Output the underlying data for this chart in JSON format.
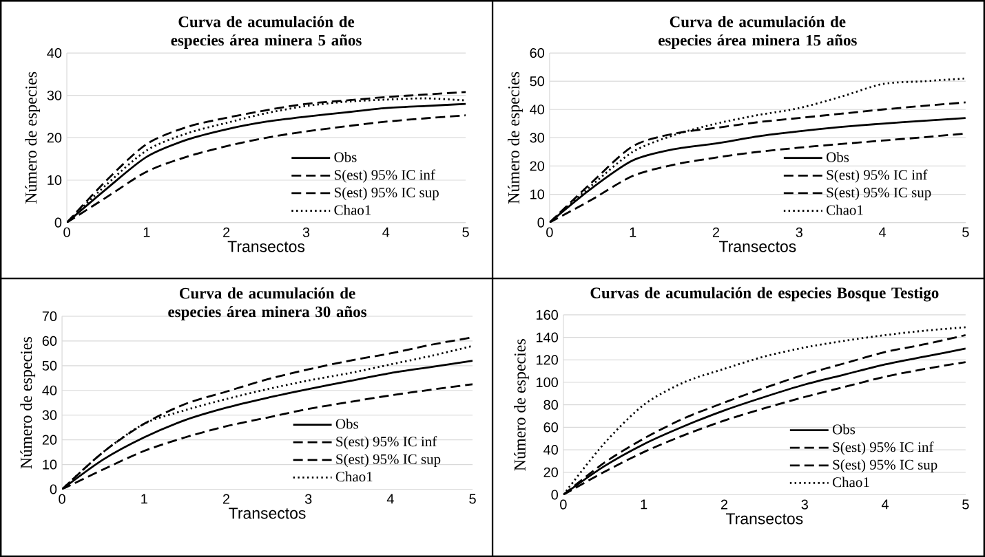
{
  "chart_data": [
    {
      "type": "line",
      "title": "Curva de acumulación de especies área minera 5 años",
      "xlabel": "Transectos",
      "ylabel": "Número de especies",
      "x": [
        0,
        0.5,
        1,
        1.5,
        2,
        2.5,
        3,
        3.5,
        4,
        4.5,
        5
      ],
      "xlim": [
        0,
        5
      ],
      "xticks": [
        0,
        1,
        2,
        3,
        4,
        5
      ],
      "ylim": [
        0,
        40
      ],
      "yticks": [
        0,
        10,
        20,
        30,
        40
      ],
      "grid": "y",
      "legend": "bottom right",
      "marker": "none",
      "series": [
        {
          "name": "Obs",
          "color": "#000000",
          "line_style": "solid",
          "values": [
            0,
            8,
            15.5,
            19.5,
            22,
            23.8,
            25,
            26,
            27,
            27.5,
            28
          ]
        },
        {
          "name": "S(est) 95% IC inf",
          "color": "#000000",
          "line_style": "dashed",
          "values": [
            0,
            6,
            12,
            15.5,
            18,
            20,
            21.5,
            22.7,
            23.8,
            24.6,
            25.3
          ]
        },
        {
          "name": "S(est) 95% IC sup",
          "color": "#000000",
          "line_style": "dashed",
          "values": [
            0,
            10,
            18.5,
            22.5,
            24.7,
            26.5,
            28,
            28.8,
            29.6,
            30.2,
            30.8
          ]
        },
        {
          "name": "Chao1",
          "color": "#000000",
          "line_style": "dotted",
          "values": [
            0,
            9,
            17,
            21,
            23.5,
            25.8,
            27.5,
            28.5,
            29,
            29.3,
            28.8
          ]
        }
      ]
    },
    {
      "type": "line",
      "title": "Curva de acumulación de especies área minera 15 años",
      "xlabel": "Transectos",
      "ylabel": "Número de especies",
      "x": [
        0,
        0.5,
        1,
        1.5,
        2,
        2.5,
        3,
        3.5,
        4,
        4.5,
        5
      ],
      "xlim": [
        0,
        5
      ],
      "xticks": [
        0,
        1,
        2,
        3,
        4,
        5
      ],
      "ylim": [
        0,
        60
      ],
      "yticks": [
        0,
        10,
        20,
        30,
        40,
        50,
        60
      ],
      "grid": "y",
      "legend": "bottom right",
      "marker": "none",
      "series": [
        {
          "name": "Obs",
          "color": "#000000",
          "line_style": "solid",
          "values": [
            0,
            12,
            22,
            26,
            28,
            30.5,
            32.3,
            33.8,
            35,
            36,
            37
          ]
        },
        {
          "name": "S(est) 95% IC inf",
          "color": "#000000",
          "line_style": "dashed",
          "values": [
            0,
            8,
            16.5,
            20.5,
            23,
            25,
            26.5,
            27.8,
            29,
            30.2,
            31.5
          ]
        },
        {
          "name": "S(est) 95% IC sup",
          "color": "#000000",
          "line_style": "dashed",
          "values": [
            0,
            14,
            27,
            31.5,
            33.5,
            35.5,
            37,
            38.5,
            40,
            41.3,
            42.5
          ]
        },
        {
          "name": "Chao1",
          "color": "#000000",
          "line_style": "dotted",
          "values": [
            0,
            13,
            25,
            31,
            35,
            38,
            40.5,
            44.5,
            49,
            50,
            51
          ]
        }
      ]
    },
    {
      "type": "line",
      "title": "Curva de acumulación de especies área minera 30 años",
      "xlabel": "Transectos",
      "ylabel": "Número de especies",
      "x": [
        0,
        0.5,
        1,
        1.5,
        2,
        2.5,
        3,
        3.5,
        4,
        4.5,
        5
      ],
      "xlim": [
        0,
        5
      ],
      "xticks": [
        0,
        1,
        2,
        3,
        4,
        5
      ],
      "ylim": [
        0,
        70
      ],
      "yticks": [
        0,
        10,
        20,
        30,
        40,
        50,
        60,
        70
      ],
      "grid": "y",
      "legend": "bottom right",
      "marker": "none",
      "series": [
        {
          "name": "Obs",
          "color": "#000000",
          "line_style": "solid",
          "values": [
            0,
            12,
            21,
            28,
            33,
            37,
            40.5,
            43.8,
            47,
            49.5,
            52
          ]
        },
        {
          "name": "S(est) 95% IC inf",
          "color": "#000000",
          "line_style": "dashed",
          "values": [
            0,
            8,
            15.5,
            21,
            25.5,
            29,
            32.5,
            35.3,
            38,
            40.3,
            42.5
          ]
        },
        {
          "name": "S(est) 95% IC sup",
          "color": "#000000",
          "line_style": "dashed",
          "values": [
            0,
            15,
            26.5,
            34.5,
            39.5,
            44.5,
            48.5,
            52,
            55,
            58.5,
            61.5
          ]
        },
        {
          "name": "Chao1",
          "color": "#000000",
          "line_style": "dotted",
          "values": [
            0,
            15,
            26.5,
            32,
            36.5,
            40.5,
            44,
            47,
            50.5,
            54,
            58
          ]
        }
      ]
    },
    {
      "type": "line",
      "title": "Curvas de acumulación de especies Bosque Testigo",
      "xlabel": "Transectos",
      "ylabel": "Número de especies",
      "x": [
        0,
        0.5,
        1,
        1.5,
        2,
        2.5,
        3,
        3.5,
        4,
        4.5,
        5
      ],
      "xlim": [
        0,
        5
      ],
      "xticks": [
        0,
        1,
        2,
        3,
        4,
        5
      ],
      "ylim": [
        0,
        160
      ],
      "yticks": [
        0,
        20,
        40,
        60,
        80,
        100,
        120,
        140,
        160
      ],
      "grid": "y",
      "legend": "bottom right",
      "marker": "none",
      "series": [
        {
          "name": "Obs",
          "color": "#000000",
          "line_style": "solid",
          "values": [
            0,
            25,
            45,
            61,
            75,
            87,
            98,
            107,
            116,
            123,
            130
          ]
        },
        {
          "name": "S(est) 95% IC inf",
          "color": "#000000",
          "line_style": "dashed",
          "values": [
            0,
            20,
            38,
            53,
            66,
            77,
            87,
            96,
            105,
            112,
            118
          ]
        },
        {
          "name": "S(est) 95% IC sup",
          "color": "#000000",
          "line_style": "dashed",
          "values": [
            0,
            28,
            50,
            68,
            82,
            95,
            107,
            117,
            127,
            134,
            142
          ]
        },
        {
          "name": "Chao1",
          "color": "#000000",
          "line_style": "dotted",
          "values": [
            0,
            45,
            80,
            100,
            112,
            123,
            131,
            137,
            142,
            146,
            149
          ]
        }
      ]
    }
  ]
}
